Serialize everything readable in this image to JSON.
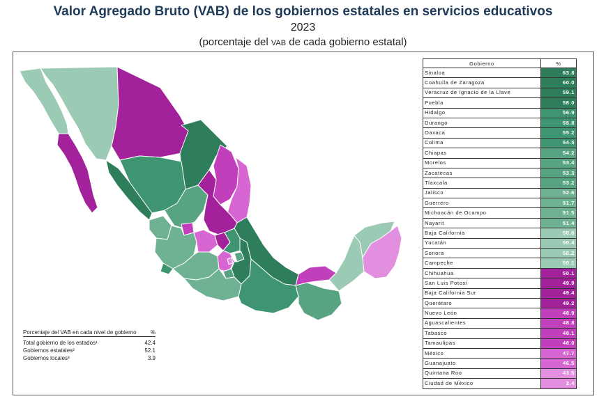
{
  "header": {
    "title": "Valor Agregado Bruto (VAB) de los gobiernos estatales en servicios educativos",
    "year": "2023",
    "subtitle_pre": "(porcentaje del ",
    "subtitle_vab": "VAB",
    "subtitle_post": " de cada gobierno estatal)"
  },
  "colors": {
    "green_dark": "#2e7d5b",
    "green_mid": "#3f9472",
    "green_light": "#6fb193",
    "green_pale": "#9ccbb5",
    "magenta_dark": "#a3229b",
    "magenta_mid": "#c23fbc",
    "magenta_light": "#d766d2",
    "magenta_pale": "#e38fdf"
  },
  "table": {
    "col_state": "Gobierno",
    "col_pct": "%",
    "rows": [
      {
        "state": "Sinaloa",
        "pct": "63.8",
        "color": "#2e7d5b"
      },
      {
        "state": "Coahuila de Zaragoza",
        "pct": "60.0",
        "color": "#2e7d5b"
      },
      {
        "state": "Veracruz de Ignacio de la Llave",
        "pct": "59.1",
        "color": "#2e7d5b"
      },
      {
        "state": "Puebla",
        "pct": "58.0",
        "color": "#2e7d5b"
      },
      {
        "state": "Hidalgo",
        "pct": "56.9",
        "color": "#3f9472"
      },
      {
        "state": "Durango",
        "pct": "56.8",
        "color": "#3f9472"
      },
      {
        "state": "Oaxaca",
        "pct": "55.2",
        "color": "#3f9472"
      },
      {
        "state": "Colima",
        "pct": "54.5",
        "color": "#3f9472"
      },
      {
        "state": "Chiapas",
        "pct": "54.2",
        "color": "#57a382"
      },
      {
        "state": "Morelos",
        "pct": "53.4",
        "color": "#57a382"
      },
      {
        "state": "Zacatecas",
        "pct": "53.3",
        "color": "#57a382"
      },
      {
        "state": "Tlaxcala",
        "pct": "53.2",
        "color": "#57a382"
      },
      {
        "state": "Jalisco",
        "pct": "52.6",
        "color": "#6fb193"
      },
      {
        "state": "Guerrero",
        "pct": "51.7",
        "color": "#6fb193"
      },
      {
        "state": "Michoacán de Ocampo",
        "pct": "51.5",
        "color": "#6fb193"
      },
      {
        "state": "Nayarit",
        "pct": "51.4",
        "color": "#6fb193"
      },
      {
        "state": "Baja California",
        "pct": "50.6",
        "color": "#9ccbb5"
      },
      {
        "state": "Yucatán",
        "pct": "50.4",
        "color": "#9ccbb5"
      },
      {
        "state": "Sonora",
        "pct": "50.2",
        "color": "#9ccbb5"
      },
      {
        "state": "Campeche",
        "pct": "50.1",
        "color": "#9ccbb5"
      },
      {
        "state": "Chihuahua",
        "pct": "50.1",
        "color": "#a3229b"
      },
      {
        "state": "San Luis Potosí",
        "pct": "49.9",
        "color": "#a3229b"
      },
      {
        "state": "Baja California Sur",
        "pct": "49.4",
        "color": "#a3229b"
      },
      {
        "state": "Querétaro",
        "pct": "49.2",
        "color": "#a3229b"
      },
      {
        "state": "Nuevo León",
        "pct": "48.9",
        "color": "#c23fbc"
      },
      {
        "state": "Aguascalientes",
        "pct": "48.8",
        "color": "#c23fbc"
      },
      {
        "state": "Tabasco",
        "pct": "48.1",
        "color": "#c23fbc"
      },
      {
        "state": "Tamaulipas",
        "pct": "48.0",
        "color": "#c23fbc"
      },
      {
        "state": "México",
        "pct": "47.7",
        "color": "#d766d2"
      },
      {
        "state": "Guanajuato",
        "pct": "46.5",
        "color": "#d766d2"
      },
      {
        "state": "Quintana Roo",
        "pct": "43.5",
        "color": "#e38fdf"
      },
      {
        "state": "Ciudad de México",
        "pct": "2.4",
        "color": "#e38fdf"
      }
    ]
  },
  "summary": {
    "header_label": "Porcentaje del VAB en cada nivel de gobierno",
    "header_pct": "%",
    "rows": [
      {
        "label": "Total gobierno de los estados¹",
        "value": "42.4"
      },
      {
        "label": "Gobiernos estatales²",
        "value": "52.1"
      },
      {
        "label": "Gobiernos locales³",
        "value": "3.9"
      }
    ]
  }
}
